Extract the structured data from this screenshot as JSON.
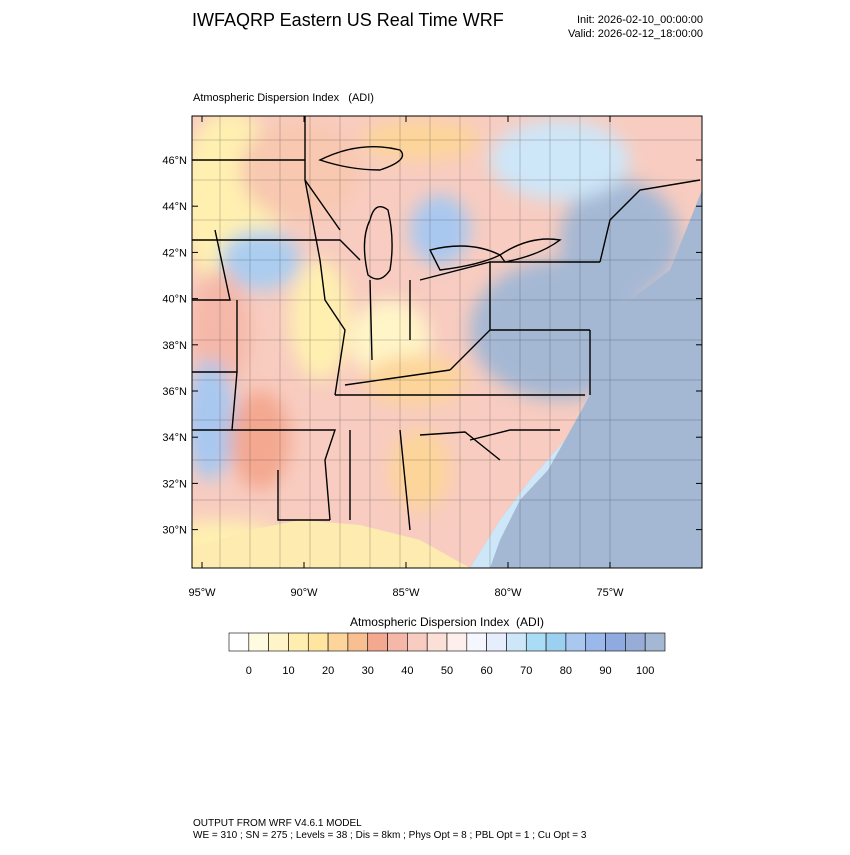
{
  "header": {
    "title": "IWFAQRP Eastern US Real Time WRF",
    "init": "Init: 2026-02-10_00:00:00",
    "valid": "Valid: 2026-02-12_18:00:00"
  },
  "map": {
    "title": "Atmospheric Dispersion Index   (ADI)",
    "lat_labels": [
      "46°N",
      "44°N",
      "42°N",
      "40°N",
      "38°N",
      "36°N",
      "34°N",
      "32°N",
      "30°N"
    ],
    "lon_labels": [
      "95°W",
      "90°W",
      "85°W",
      "80°W",
      "75°W"
    ]
  },
  "colorbar": {
    "title": "Atmospheric Dispersion Index  (ADI)",
    "ticks": [
      0,
      10,
      20,
      30,
      40,
      50,
      60,
      70,
      80,
      90,
      100
    ],
    "colors": [
      "#ffffff",
      "#fffbe0",
      "#fff5c8",
      "#ffeeb0",
      "#ffe5a0",
      "#fdd59a",
      "#f8c090",
      "#f4a890",
      "#f5b8a8",
      "#f8ccc0",
      "#fbe0d8",
      "#fdf0ec",
      "#f6f6ff",
      "#e6eefe",
      "#cde6f8",
      "#aadcf5",
      "#9cd0f0",
      "#a8c8f0",
      "#9ab8ea",
      "#8eaae0",
      "#98acd8",
      "#a4b8d4"
    ]
  },
  "footer": {
    "line1": "OUTPUT FROM WRF V4.6.1 MODEL",
    "line2": "WE = 310 ; SN = 275 ; Levels = 38 ; Dis = 8km ; Phys Opt = 8 ; PBL Opt = 1 ; Cu Opt = 3"
  }
}
